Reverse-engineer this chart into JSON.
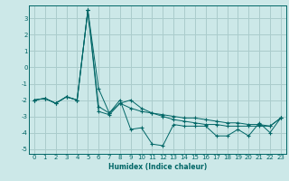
{
  "xlabel": "Humidex (Indice chaleur)",
  "ylabel": "",
  "background_color": "#cce8e8",
  "grid_color": "#aacccc",
  "line_color": "#006666",
  "xlim": [
    -0.5,
    23.5
  ],
  "ylim": [
    -5.3,
    3.8
  ],
  "yticks": [
    -5,
    -4,
    -3,
    -2,
    -1,
    0,
    1,
    2,
    3
  ],
  "xticks": [
    0,
    1,
    2,
    3,
    4,
    5,
    6,
    7,
    8,
    9,
    10,
    11,
    12,
    13,
    14,
    15,
    16,
    17,
    18,
    19,
    20,
    21,
    22,
    23
  ],
  "series": [
    [
      0,
      -2.0
    ],
    [
      1,
      -1.9
    ],
    [
      2,
      -2.2
    ],
    [
      3,
      -1.8
    ],
    [
      4,
      -2.0
    ],
    [
      5,
      3.5
    ],
    [
      6,
      -1.3
    ],
    [
      7,
      -2.8
    ],
    [
      8,
      -2.0
    ],
    [
      9,
      -3.8
    ],
    [
      10,
      -3.7
    ],
    [
      11,
      -4.7
    ],
    [
      12,
      -4.8
    ],
    [
      13,
      -3.5
    ],
    [
      14,
      -3.6
    ],
    [
      15,
      -3.6
    ],
    [
      16,
      -3.6
    ],
    [
      17,
      -4.2
    ],
    [
      18,
      -4.2
    ],
    [
      19,
      -3.8
    ],
    [
      20,
      -4.2
    ],
    [
      21,
      -3.4
    ],
    [
      22,
      -4.0
    ],
    [
      23,
      -3.1
    ]
  ],
  "series2": [
    [
      0,
      -2.0
    ],
    [
      1,
      -1.9
    ],
    [
      2,
      -2.2
    ],
    [
      3,
      -1.8
    ],
    [
      4,
      -2.0
    ],
    [
      5,
      3.5
    ],
    [
      6,
      -2.7
    ],
    [
      7,
      -2.9
    ],
    [
      8,
      -2.2
    ],
    [
      9,
      -2.5
    ],
    [
      10,
      -2.7
    ],
    [
      11,
      -2.8
    ],
    [
      12,
      -2.9
    ],
    [
      13,
      -3.0
    ],
    [
      14,
      -3.1
    ],
    [
      15,
      -3.1
    ],
    [
      16,
      -3.2
    ],
    [
      17,
      -3.3
    ],
    [
      18,
      -3.4
    ],
    [
      19,
      -3.4
    ],
    [
      20,
      -3.5
    ],
    [
      21,
      -3.5
    ],
    [
      22,
      -3.6
    ],
    [
      23,
      -3.1
    ]
  ],
  "series3": [
    [
      0,
      -2.0
    ],
    [
      1,
      -1.9
    ],
    [
      2,
      -2.2
    ],
    [
      3,
      -1.8
    ],
    [
      4,
      -2.0
    ],
    [
      5,
      3.5
    ],
    [
      6,
      -2.4
    ],
    [
      7,
      -2.8
    ],
    [
      8,
      -2.2
    ],
    [
      9,
      -2.0
    ],
    [
      10,
      -2.5
    ],
    [
      11,
      -2.8
    ],
    [
      12,
      -3.0
    ],
    [
      13,
      -3.2
    ],
    [
      14,
      -3.3
    ],
    [
      15,
      -3.4
    ],
    [
      16,
      -3.5
    ],
    [
      17,
      -3.5
    ],
    [
      18,
      -3.6
    ],
    [
      19,
      -3.6
    ],
    [
      20,
      -3.6
    ],
    [
      21,
      -3.6
    ],
    [
      22,
      -3.6
    ],
    [
      23,
      -3.1
    ]
  ],
  "xlabel_fontsize": 5.5,
  "tick_fontsize": 5.0
}
